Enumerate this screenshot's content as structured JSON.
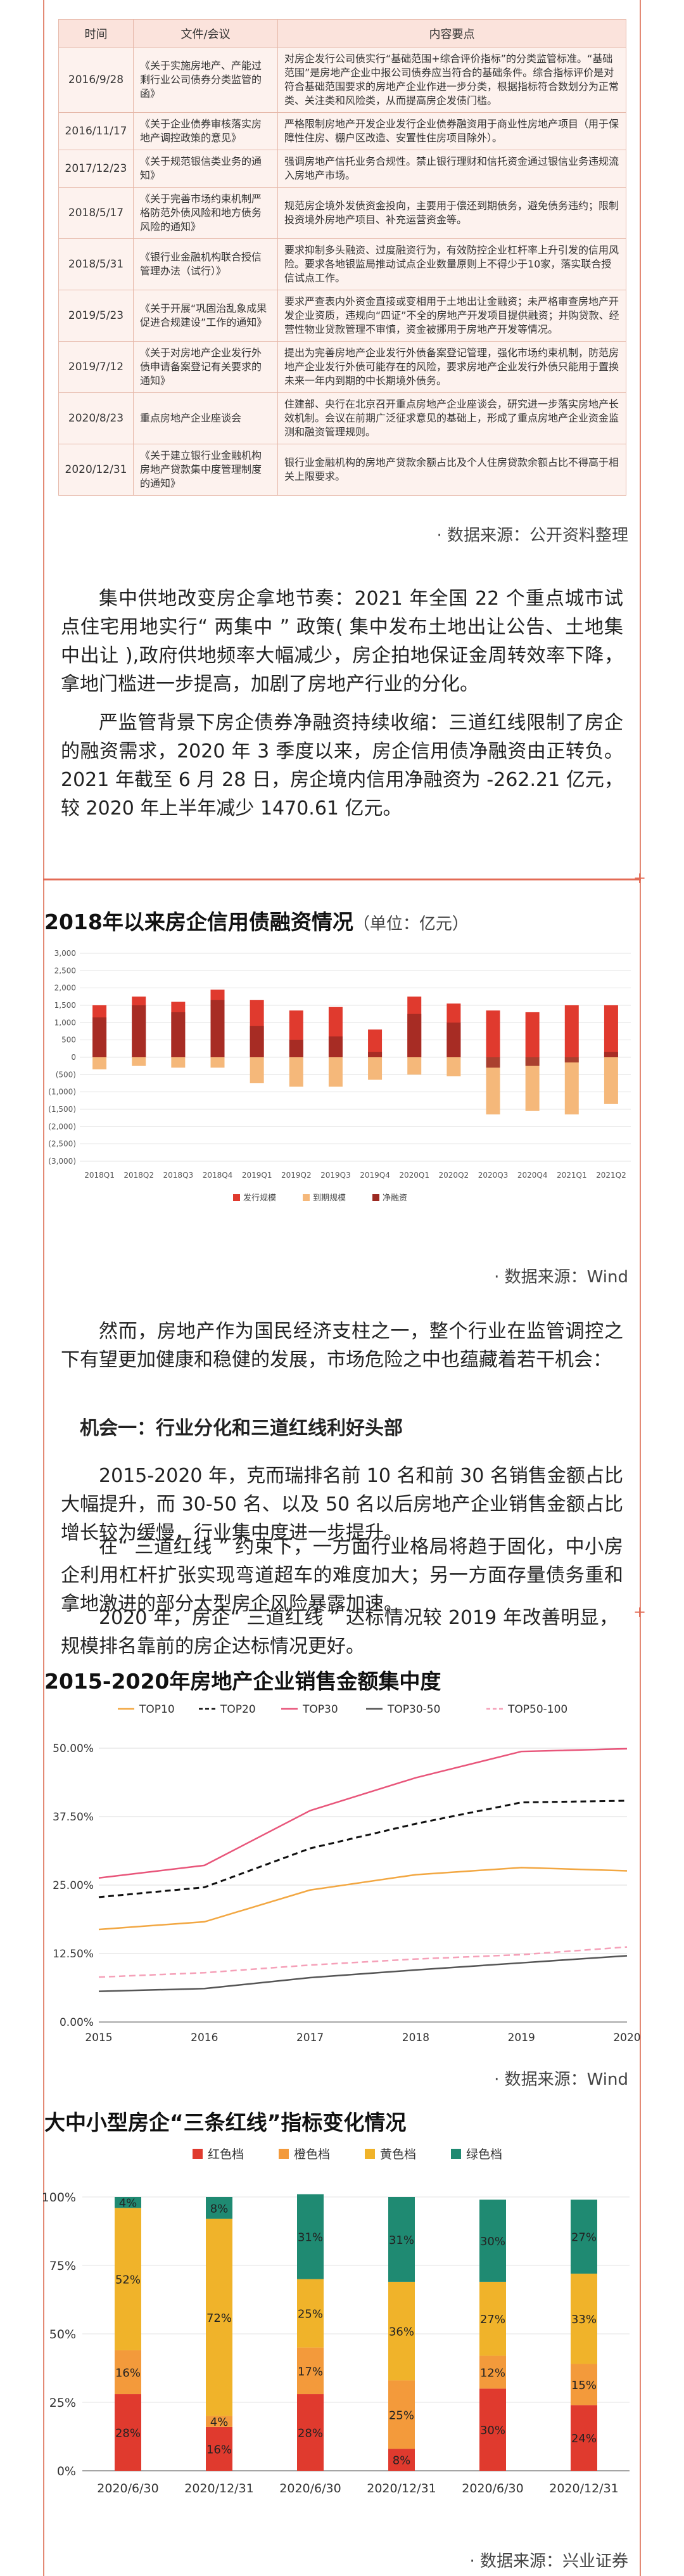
{
  "policy_table": {
    "headers": [
      "时间",
      "文件/会议",
      "内容要点"
    ],
    "rows": [
      {
        "date": "2016/9/28",
        "doc": "《关于实施房地产、产能过剩行业公司债券分类监管的函》",
        "content": "对房企发行公司债实行“基础范围+综合评价指标”的分类监管标准。“基础范围”是房地产企业中报公司债券应当符合的基础条件。综合指标评价是对符合基础范围要求的房地产企业作进一步分类，根据指标符合数划分为正常类、关注类和风险类，从而提高房企发债门槛。"
      },
      {
        "date": "2016/11/17",
        "doc": "《关于企业债券审核落实房地产调控政策的意见》",
        "content": "严格限制房地产开发企业发行企业债券融资用于商业性房地产项目（用于保障性住房、棚户区改造、安置性住房项目除外）。"
      },
      {
        "date": "2017/12/23",
        "doc": "《关于规范银信类业务的通知》",
        "content": "强调房地产信托业务合规性。禁止银行理财和信托资金通过银信业务违规流入房地产市场。"
      },
      {
        "date": "2018/5/17",
        "doc": "《关于完善市场约束机制严格防范外债风险和地方债务风险的通知》",
        "content": "规范房企境外发债资金投向，主要用于偿还到期债务，避免债务违约；限制投资境外房地产项目、补充运营资金等。"
      },
      {
        "date": "2018/5/31",
        "doc": "《银行业金融机构联合授信管理办法（试行）》",
        "content": "要求抑制多头融资、过度融资行为，有效防控企业杠杆率上升引发的信用风险。要求各地银监局推动试点企业数量原则上不得少于10家，落实联合授信试点工作。"
      },
      {
        "date": "2019/5/23",
        "doc": "《关于开展“巩固治乱象成果促进合规建设”工作的通知》",
        "content": "要求严查表内外资金直接或变相用于土地出让金融资；未严格审查房地产开发企业资质，违规向“四证”不全的房地产开发项目提供融资；并购贷款、经营性物业贷款管理不审慎，资金被挪用于房地产开发等情况。"
      },
      {
        "date": "2019/7/12",
        "doc": "《关于对房地产企业发行外债申请备案登记有关要求的通知》",
        "content": "提出为完善房地产企业发行外债备案登记管理，强化市场约束机制，防范房地产企业发行外债可能存在的风险，要求房地产企业发行外债只能用于置换未来一年内到期的中长期境外债务。"
      },
      {
        "date": "2020/8/23",
        "doc": "重点房地产企业座谈会",
        "content": "住建部、央行在北京召开重点房地产企业座谈会，研究进一步落实房地产长效机制。会议在前期广泛征求意见的基础上，形成了重点房地产企业资金监测和融资管理规则。"
      },
      {
        "date": "2020/12/31",
        "doc": "《关于建立银行业金融机构房地产贷款集中度管理制度的通知》",
        "content": "银行业金融机构的房地产贷款余额占比及个人住房贷款余额占比不得高于相关上限要求。"
      }
    ]
  },
  "source_1": "· 数据来源：公开资料整理",
  "para_1": "集中供地改变房企拿地节奏：2021 年全国 22 个重点城市试点住宅用地实行“ 两集中 ” 政策( 集中发布土地出让公告、土地集中出让 ),政府供地频率大幅减少，房企拍地保证金周转效率下降，拿地门槛进一步提高，加剧了房地产行业的分化。",
  "para_2": "严监管背景下房企债券净融资持续收缩：三道红线限制了房企的融资需求，2020 年 3 季度以来，房企信用债净融资由正转负。2021 年截至 6 月 28 日，房企境内信用净融资为 -262.21 亿元，较 2020 年上半年减少 1470.61 亿元。",
  "chart1": {
    "title": "2018年以来房企信用债融资情况",
    "unit": "（单位：亿元）",
    "source": "· 数据来源：Wind",
    "legend": [
      "发行规模",
      "到期规模",
      "净融资"
    ],
    "colors": {
      "issue": "#e03a2e",
      "maturity": "#f5b87a",
      "net": "#9c2a22"
    }
  },
  "chart_data": [
    {
      "type": "bar",
      "title": "2018年以来房企信用债融资情况",
      "unit": "（单位：亿元）",
      "categories": [
        "2018Q1",
        "2018Q2",
        "2018Q3",
        "2018Q4",
        "2019Q1",
        "2019Q2",
        "2019Q3",
        "2019Q4",
        "2020Q1",
        "2020Q2",
        "2020Q3",
        "2020Q4",
        "2021Q1",
        "2021Q2"
      ],
      "series": [
        {
          "name": "发行规模",
          "values": [
            1500,
            1750,
            1600,
            1950,
            1650,
            1350,
            1450,
            800,
            1750,
            1550,
            1350,
            1300,
            1500,
            1500
          ]
        },
        {
          "name": "到期规模",
          "values": [
            -350,
            -250,
            -300,
            -300,
            -750,
            -850,
            -850,
            -650,
            -500,
            -550,
            -1650,
            -1550,
            -1650,
            -1350
          ]
        },
        {
          "name": "净融资",
          "values": [
            1150,
            1500,
            1300,
            1650,
            900,
            500,
            600,
            150,
            1250,
            1000,
            -300,
            -250,
            -150,
            150
          ]
        }
      ],
      "yticks": [
        "3,000",
        "2,500",
        "2,000",
        "1,500",
        "1,000",
        "500",
        "0",
        "(500)",
        "(1,000)",
        "(1,500)",
        "(2,000)",
        "(2,500)",
        "(3,000)"
      ],
      "ylim": [
        -3000,
        3000
      ],
      "legend_position": "bottom"
    },
    {
      "type": "line",
      "title": "2015-2020年房地产企业销售金额集中度",
      "x": [
        2015,
        2016,
        2017,
        2018,
        2019,
        2020
      ],
      "series": [
        {
          "name": "TOP10",
          "values": [
            16.9,
            18.3,
            24.1,
            26.9,
            28.2,
            27.6
          ]
        },
        {
          "name": "TOP20",
          "values": [
            22.8,
            24.6,
            31.7,
            36.2,
            40.1,
            40.4
          ]
        },
        {
          "name": "TOP30",
          "values": [
            26.3,
            28.6,
            38.6,
            44.6,
            49.4,
            49.9
          ]
        },
        {
          "name": "TOP30-50",
          "values": [
            5.6,
            6.1,
            8.1,
            9.5,
            10.8,
            12.1
          ]
        },
        {
          "name": "TOP50-100",
          "values": [
            8.2,
            9.0,
            10.4,
            11.5,
            12.3,
            13.7
          ]
        }
      ],
      "yticks": [
        "50.00%",
        "37.50%",
        "25.00%",
        "12.50%",
        "0.00%"
      ],
      "ylim": [
        0,
        50
      ],
      "legend_position": "top"
    },
    {
      "type": "bar",
      "stacked": true,
      "title": "大中小型房企“三条红线”指标变化情况",
      "categories": [
        "2020/6/30",
        "2020/12/31",
        "2020/6/30",
        "2020/12/31",
        "2020/6/30",
        "2020/12/31"
      ],
      "series": [
        {
          "name": "红色档",
          "values": [
            28,
            16,
            28,
            8,
            30,
            24
          ]
        },
        {
          "name": "橙色档",
          "values": [
            16,
            4,
            17,
            25,
            12,
            15
          ]
        },
        {
          "name": "黄色档",
          "values": [
            52,
            72,
            25,
            36,
            27,
            33
          ]
        },
        {
          "name": "绿色档",
          "values": [
            4,
            8,
            31,
            31,
            30,
            27
          ]
        }
      ],
      "yticks": [
        "100%",
        "75%",
        "50%",
        "25%",
        "0%"
      ],
      "ylim": [
        0,
        100
      ],
      "legend_position": "top"
    }
  ],
  "para_3": "然而，房地产作为国民经济支柱之一，整个行业在监管调控之下有望更加健康和稳健的发展，市场危险之中也蕴藏着若干机会：",
  "para_3_heading": "机会一：行业分化和三道红线利好头部",
  "para_4": "2015-2020 年，克而瑞排名前 10 名和前 30 名销售金额占比大幅提升，而 30-50 名、以及 50 名以后房地产企业销售金额占比增长较为缓慢，行业集中度进一步提升。",
  "para_5": "在“ 三道红线 ” 约束下，一方面行业格局将趋于固化，中小房企利用杠杆扩张实现弯道超车的难度加大；另一方面存量债务重和拿地激进的部分大型房企风险暴露加速。",
  "para_6": "2020 年，房企“ 三道红线 ” 达标情况较 2019 年改善明显，规模排名靠前的房企达标情况更好。",
  "chart2": {
    "title": "2015-2020年房地产企业销售金额集中度",
    "source": "· 数据来源：Wind",
    "colors": {
      "TOP10": "#f2a742",
      "TOP20": "#111111",
      "TOP30": "#e8557a",
      "TOP30-50": "#555555",
      "TOP50-100": "#f5a0b8"
    }
  },
  "chart3": {
    "title": "大中小型房企“三条红线”指标变化情况",
    "source": "· 数据来源：兴业证券",
    "colors": {
      "red": "#e03a2e",
      "orange": "#f39a3b",
      "yellow": "#f0b32a",
      "green": "#1f8a72"
    }
  }
}
